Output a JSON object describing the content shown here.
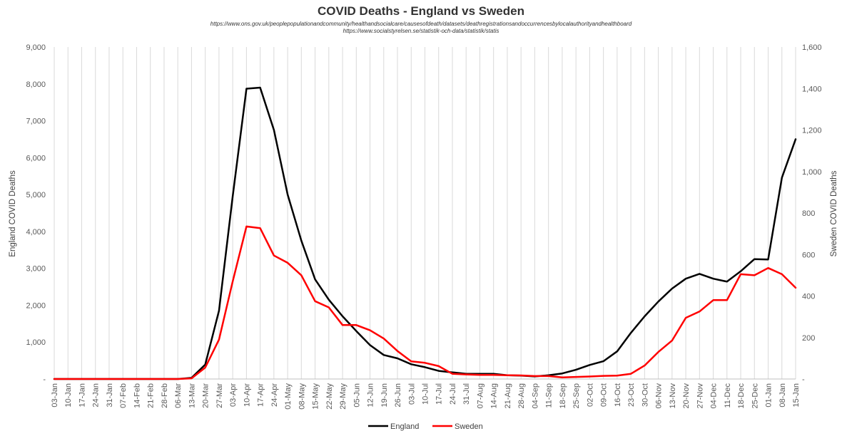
{
  "chart_data": {
    "type": "line",
    "title": "COVID Deaths - England vs Sweden",
    "sources": [
      "https://www.ons.gov.uk/peoplepopulationandcommunity/healthandsocialcare/causesofdeath/datasets/deathregistrationsandoccurrencesbylocalauthorityandhealthboard",
      "https://www.socialstyrelsen.se/statistik-och-data/statistik/statis"
    ],
    "ylabel_left": "England COVID Deaths",
    "ylabel_right": "Sweden COVID Deaths",
    "ylim_left": [
      0,
      9000
    ],
    "ylim_right": [
      0,
      1600
    ],
    "yticks_left": [
      "-",
      "1,000",
      "2,000",
      "3,000",
      "4,000",
      "5,000",
      "6,000",
      "7,000",
      "8,000",
      "9,000"
    ],
    "yticks_right": [
      "-",
      "200",
      "400",
      "600",
      "800",
      "1,000",
      "1,200",
      "1,400",
      "1,600"
    ],
    "grid": "vertical",
    "legend_position": "bottom",
    "x": [
      "03-Jan",
      "10-Jan",
      "17-Jan",
      "24-Jan",
      "31-Jan",
      "07-Feb",
      "14-Feb",
      "21-Feb",
      "28-Feb",
      "06-Mar",
      "13-Mar",
      "20-Mar",
      "27-Mar",
      "03-Apr",
      "10-Apr",
      "17-Apr",
      "24-Apr",
      "01-May",
      "08-May",
      "15-May",
      "22-May",
      "29-May",
      "05-Jun",
      "12-Jun",
      "19-Jun",
      "26-Jun",
      "03-Jul",
      "10-Jul",
      "17-Jul",
      "24-Jul",
      "31-Jul",
      "07-Aug",
      "14-Aug",
      "21-Aug",
      "28-Aug",
      "04-Sep",
      "11-Sep",
      "18-Sep",
      "25-Sep",
      "02-Oct",
      "09-Oct",
      "16-Oct",
      "23-Oct",
      "30-Oct",
      "06-Nov",
      "13-Nov",
      "20-Nov",
      "27-Nov",
      "04-Dec",
      "11-Dec",
      "18-Dec",
      "25-Dec",
      "01-Jan",
      "08-Jan",
      "15-Jan"
    ],
    "series": [
      {
        "name": "England",
        "axis": "left",
        "color": "#000000",
        "values": [
          0,
          0,
          0,
          0,
          0,
          0,
          0,
          0,
          0,
          0,
          30,
          390,
          1850,
          4950,
          7870,
          7900,
          6750,
          5000,
          3750,
          2700,
          2150,
          1700,
          1300,
          920,
          650,
          560,
          400,
          320,
          220,
          180,
          140,
          140,
          140,
          100,
          90,
          70,
          100,
          150,
          250,
          380,
          480,
          750,
          1250,
          1700,
          2100,
          2450,
          2720,
          2850,
          2720,
          2640,
          2920,
          3250,
          3240,
          5460,
          6500
        ]
      },
      {
        "name": "Sweden",
        "axis": "right",
        "color": "#ff0000",
        "values": [
          0,
          0,
          0,
          0,
          0,
          0,
          0,
          0,
          0,
          0,
          3,
          55,
          190,
          470,
          735,
          727,
          595,
          560,
          500,
          375,
          345,
          260,
          260,
          235,
          195,
          135,
          85,
          78,
          62,
          25,
          22,
          20,
          20,
          18,
          17,
          14,
          14,
          8,
          10,
          12,
          15,
          16,
          25,
          65,
          130,
          185,
          295,
          325,
          380,
          380,
          505,
          500,
          535,
          505,
          440
        ]
      }
    ]
  }
}
